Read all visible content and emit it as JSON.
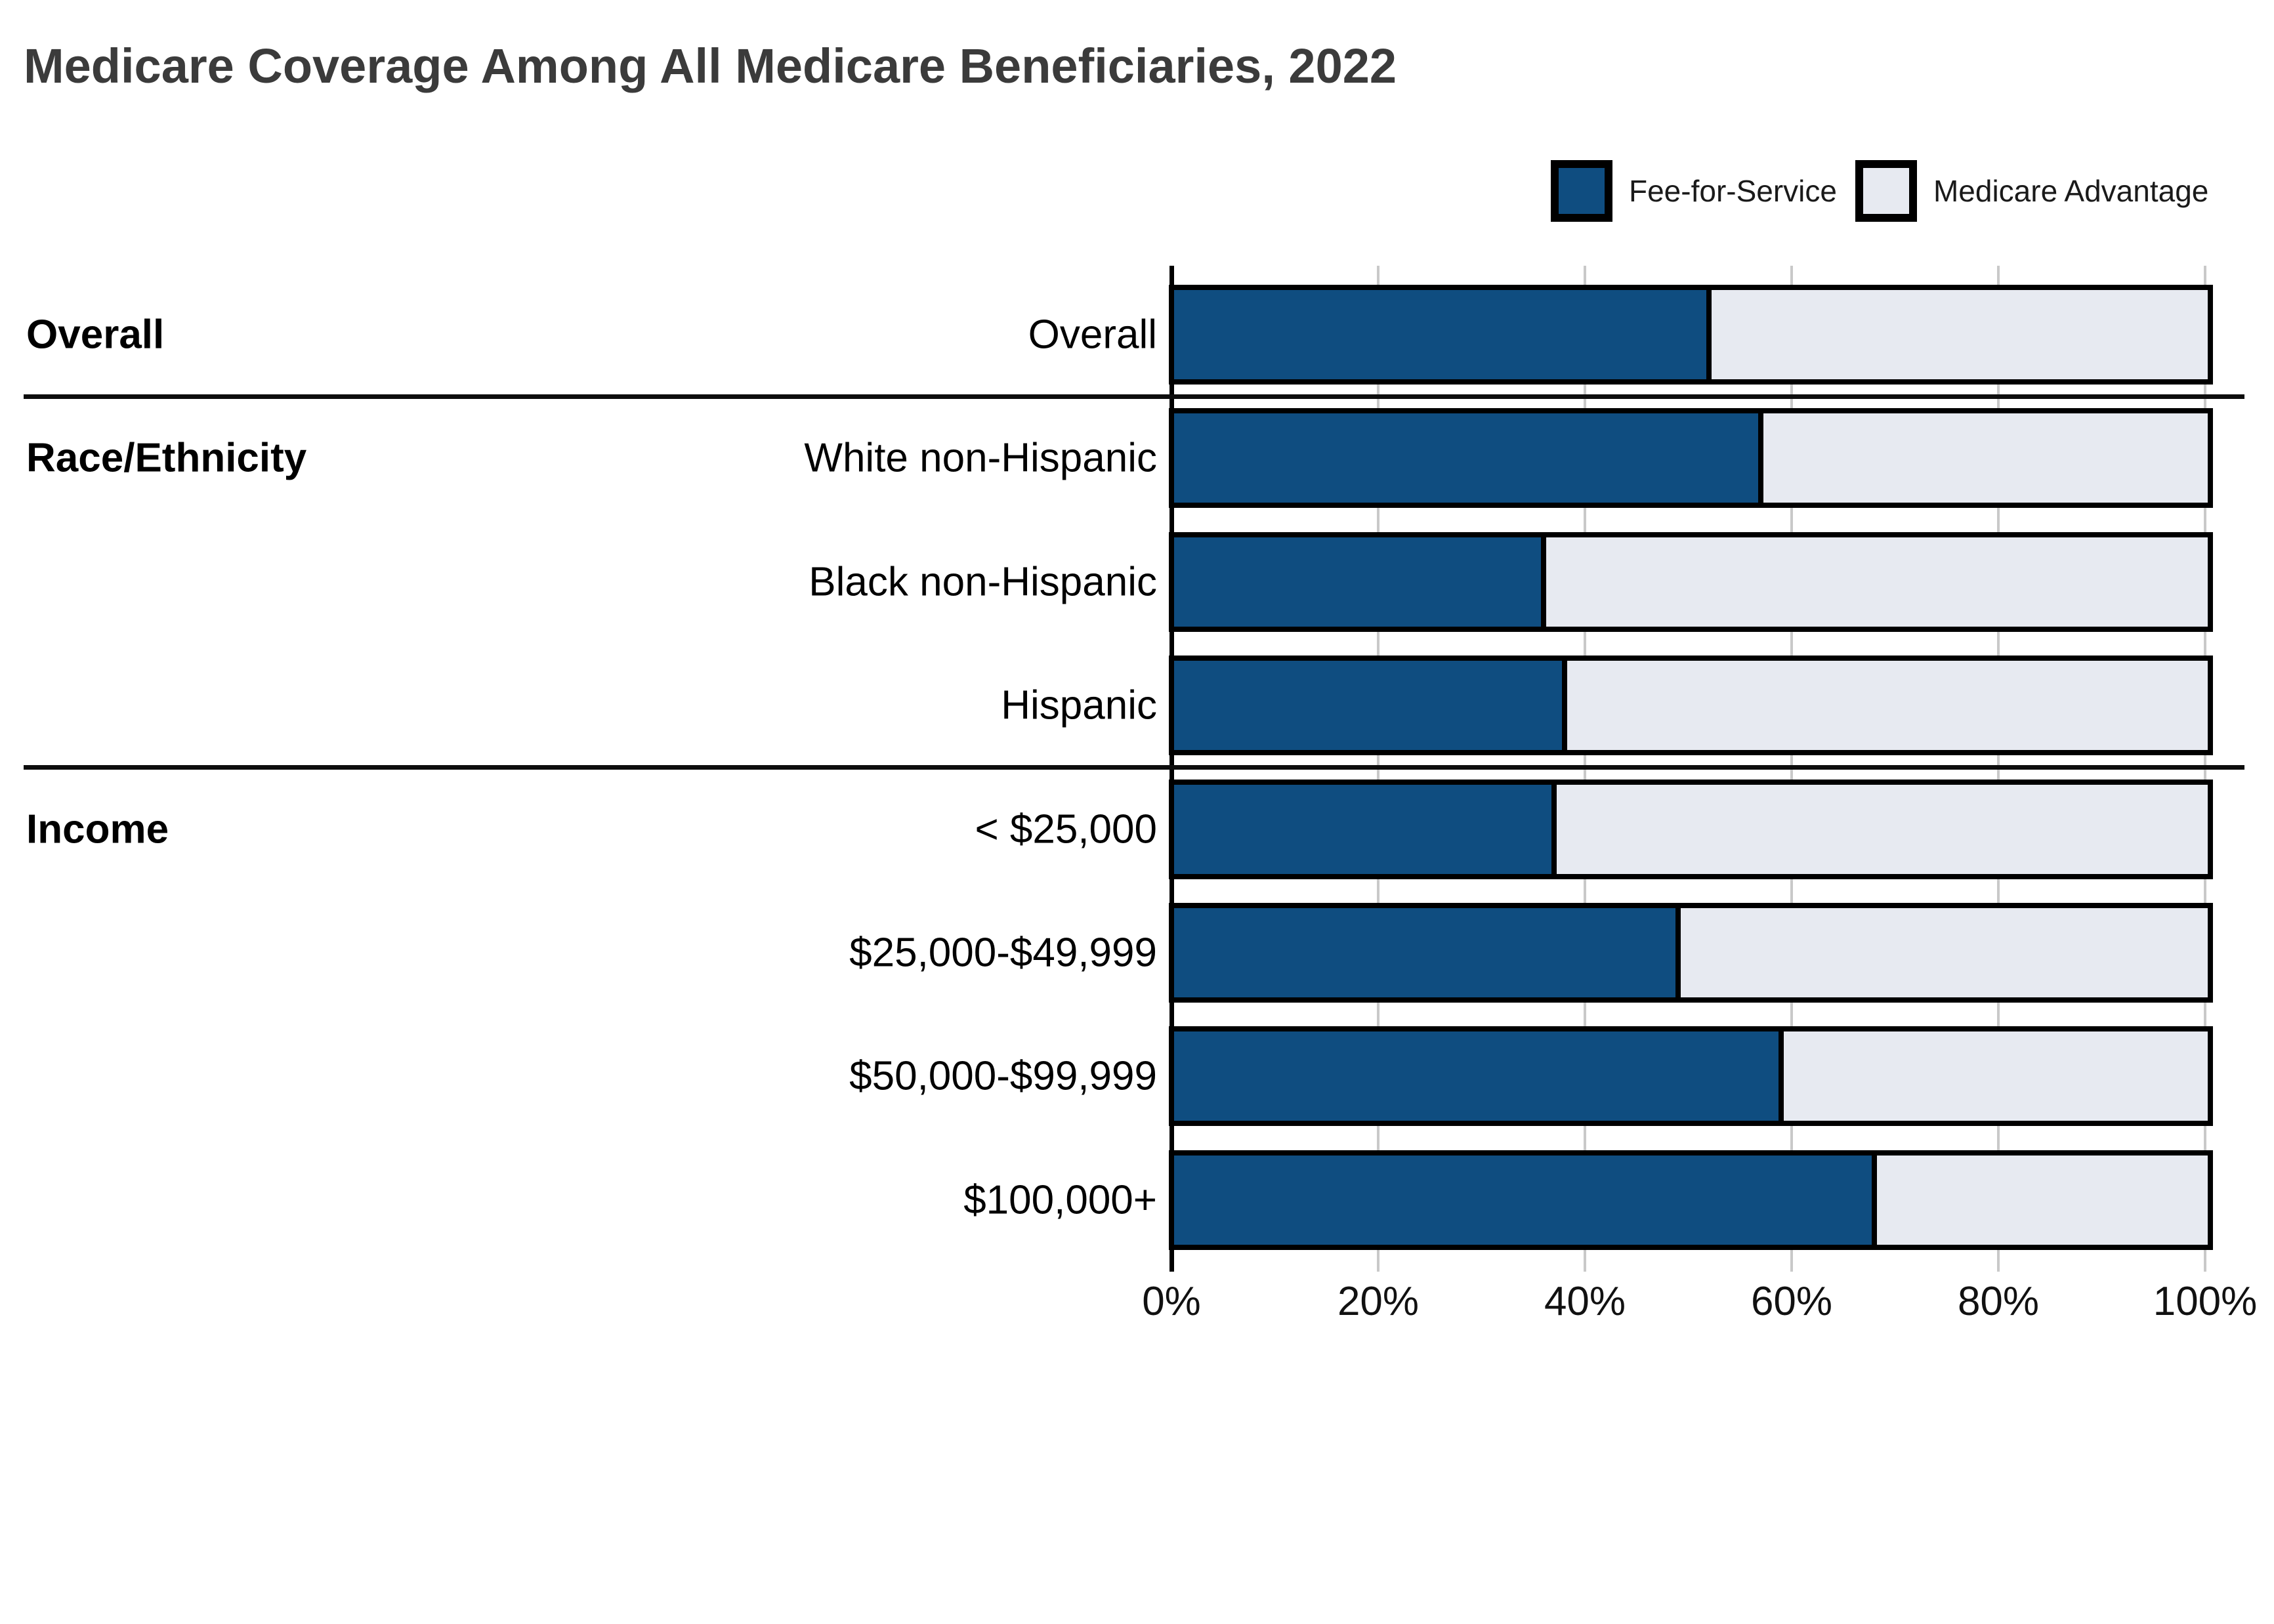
{
  "title": "Medicare Coverage Among All Medicare Beneficiaries, 2022",
  "legend": {
    "items": [
      {
        "label": "Fee-for-Service",
        "color": "#0f4d80"
      },
      {
        "label": "Medicare Advantage",
        "color": "#e7eaf1"
      }
    ]
  },
  "colors": {
    "fee_for_service": "#0f4d80",
    "medicare_advantage": "#e7eaf1",
    "segment_border": "#000000",
    "axis": "#000000",
    "gridline": "#c9c9c9",
    "separator": "#0d0d0d",
    "title_text": "#3b3b3b",
    "label_text": "#000000"
  },
  "chart_data": {
    "type": "bar",
    "orientation": "horizontal",
    "stacked": true,
    "title": "Medicare Coverage Among All Medicare Beneficiaries, 2022",
    "series": [
      "Fee-for-Service",
      "Medicare Advantage"
    ],
    "unit": "%",
    "xlim": [
      0,
      100
    ],
    "x_ticks": [
      "0%",
      "20%",
      "40%",
      "60%",
      "80%",
      "100%"
    ],
    "grid": true,
    "legend_position": "top-right",
    "groups": [
      {
        "label": "Overall",
        "rows": [
          {
            "label": "Overall",
            "fee_for_service": 52,
            "medicare_advantage": 48
          }
        ]
      },
      {
        "label": "Race/Ethnicity",
        "rows": [
          {
            "label": "White non-Hispanic",
            "fee_for_service": 57,
            "medicare_advantage": 43
          },
          {
            "label": "Black non-Hispanic",
            "fee_for_service": 36,
            "medicare_advantage": 64
          },
          {
            "label": "Hispanic",
            "fee_for_service": 38,
            "medicare_advantage": 62
          }
        ]
      },
      {
        "label": "Income",
        "rows": [
          {
            "label": "< $25,000",
            "fee_for_service": 37,
            "medicare_advantage": 63
          },
          {
            "label": "$25,000-$49,999",
            "fee_for_service": 49,
            "medicare_advantage": 51
          },
          {
            "label": "$50,000-$99,999",
            "fee_for_service": 59,
            "medicare_advantage": 41
          },
          {
            "label": "$100,000+",
            "fee_for_service": 68,
            "medicare_advantage": 32
          }
        ]
      }
    ]
  }
}
